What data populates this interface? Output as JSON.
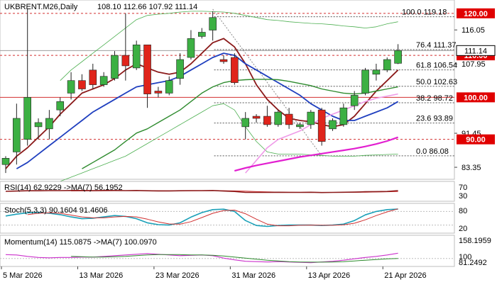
{
  "header": {
    "symbol": "UKBRENT.M26,Daily",
    "ohlc": "108.10 112.66 107.92 111.14"
  },
  "colors": {
    "bull": "#3cb043",
    "bear": "#e0241b",
    "ma_fast": "#8b1a1a",
    "ma_mid": "#1f3fbf",
    "ma_slow": "#2e8b2e",
    "ma_long": "#e21fd0",
    "ma_long_old": "#ef9ae8",
    "bands": "#4caf50",
    "level_line": "#d32f2f",
    "fib_line": "#555555",
    "price_tag": "#e00000",
    "osc_main": "#1aa0b8",
    "osc_signal": "#d03030",
    "rsi_main": "#8b1a1a",
    "momentum_main": "#cc33cc",
    "momentum_signal": "#2e8b2e"
  },
  "chart_data": {
    "type": "candlestick",
    "title": "UKBRENT.M26,Daily",
    "ylim": [
      81.0,
      122.5
    ],
    "grid": false,
    "price_ticks": [
      "116.05",
      "107.95",
      "91.45",
      "83.35"
    ],
    "x_labels": [
      "5 Mar 2026",
      "13 Mar 2026",
      "23 Mar 2026",
      "31 Mar 2026",
      "13 Apr 2026",
      "21 Apr 2026"
    ],
    "x_label_index": [
      0,
      7,
      14,
      21,
      28,
      35
    ],
    "candles": [
      {
        "o": 84.0,
        "h": 86.0,
        "l": 82.0,
        "c": 85.5
      },
      {
        "o": 87.0,
        "h": 98.5,
        "l": 84.0,
        "c": 95.0
      },
      {
        "o": 90.0,
        "h": 121.0,
        "l": 88.5,
        "c": 100.0
      },
      {
        "o": 93.0,
        "h": 95.0,
        "l": 90.0,
        "c": 94.0
      },
      {
        "o": 92.5,
        "h": 97.0,
        "l": 90.0,
        "c": 95.0
      },
      {
        "o": 97.0,
        "h": 100.0,
        "l": 95.5,
        "c": 99.0
      },
      {
        "o": 101.0,
        "h": 106.0,
        "l": 99.5,
        "c": 104.0
      },
      {
        "o": 104.0,
        "h": 105.5,
        "l": 101.5,
        "c": 102.0
      },
      {
        "o": 106.5,
        "h": 108.0,
        "l": 102.0,
        "c": 103.0
      },
      {
        "o": 103.0,
        "h": 106.0,
        "l": 102.5,
        "c": 105.0
      },
      {
        "o": 104.5,
        "h": 111.0,
        "l": 104.0,
        "c": 110.0
      },
      {
        "o": 110.0,
        "h": 120.0,
        "l": 104.0,
        "c": 107.5
      },
      {
        "o": 107.0,
        "h": 113.5,
        "l": 106.5,
        "c": 112.5
      },
      {
        "o": 112.5,
        "h": 112.5,
        "l": 97.5,
        "c": 100.8
      },
      {
        "o": 101.5,
        "h": 102.5,
        "l": 100.0,
        "c": 101.0
      },
      {
        "o": 101.0,
        "h": 105.0,
        "l": 100.5,
        "c": 104.0
      },
      {
        "o": 104.5,
        "h": 110.5,
        "l": 103.0,
        "c": 109.0
      },
      {
        "o": 109.5,
        "h": 116.0,
        "l": 109.0,
        "c": 114.0
      },
      {
        "o": 114.5,
        "h": 116.5,
        "l": 114.0,
        "c": 115.5
      },
      {
        "o": 116.0,
        "h": 120.5,
        "l": 113.5,
        "c": 119.0
      },
      {
        "o": 109.0,
        "h": 110.0,
        "l": 108.0,
        "c": 108.5
      },
      {
        "o": 109.5,
        "h": 110.5,
        "l": 103.0,
        "c": 103.5
      },
      {
        "o": 93.0,
        "h": 96.5,
        "l": 90.0,
        "c": 95.0
      },
      {
        "o": 95.5,
        "h": 96.0,
        "l": 94.0,
        "c": 95.0
      },
      {
        "o": 95.5,
        "h": 98.0,
        "l": 93.0,
        "c": 93.5
      },
      {
        "o": 93.5,
        "h": 97.0,
        "l": 93.0,
        "c": 96.5
      },
      {
        "o": 96.0,
        "h": 97.5,
        "l": 92.5,
        "c": 93.5
      },
      {
        "o": 93.0,
        "h": 94.0,
        "l": 92.5,
        "c": 93.5
      },
      {
        "o": 93.5,
        "h": 97.0,
        "l": 92.5,
        "c": 96.5
      },
      {
        "o": 97.0,
        "h": 97.5,
        "l": 88.5,
        "c": 89.5
      },
      {
        "o": 92.5,
        "h": 95.0,
        "l": 92.0,
        "c": 94.5
      },
      {
        "o": 93.5,
        "h": 98.5,
        "l": 93.0,
        "c": 97.5
      },
      {
        "o": 98.0,
        "h": 101.5,
        "l": 97.0,
        "c": 100.5
      },
      {
        "o": 101.0,
        "h": 107.0,
        "l": 100.5,
        "c": 106.5
      },
      {
        "o": 105.5,
        "h": 108.0,
        "l": 104.0,
        "c": 106.5
      },
      {
        "o": 106.5,
        "h": 109.5,
        "l": 106.0,
        "c": 109.0
      },
      {
        "o": 108.1,
        "h": 112.66,
        "l": 107.92,
        "c": 111.14
      }
    ],
    "moving_averages": [
      {
        "key": "ma_fast",
        "values": [
          83.0,
          86.0,
          88.0,
          90.5,
          93.0,
          96.0,
          98.5,
          101.0,
          102.0,
          103.0,
          104.5,
          106.5,
          108.0,
          107.0,
          106.0,
          105.5,
          106.0,
          108.0,
          110.5,
          113.0,
          114.0,
          112.0,
          108.0,
          103.0,
          99.5,
          97.0,
          95.0,
          94.5,
          94.2,
          93.5,
          93.0,
          93.5,
          95.5,
          98.5,
          101.5,
          104.0,
          106.5
        ]
      },
      {
        "key": "ma_mid",
        "values": [
          null,
          83.0,
          84.5,
          86.5,
          88.5,
          90.5,
          92.5,
          94.5,
          96.5,
          98.0,
          99.5,
          101.0,
          102.5,
          103.0,
          103.5,
          104.0,
          105.0,
          106.5,
          108.0,
          109.5,
          110.5,
          110.0,
          108.0,
          106.5,
          105.0,
          103.5,
          102.0,
          100.5,
          98.5,
          97.0,
          95.5,
          94.5,
          94.5,
          95.5,
          96.5,
          97.5,
          99.0
        ]
      },
      {
        "key": "ma_slow",
        "values": [
          null,
          null,
          null,
          null,
          null,
          null,
          null,
          83.0,
          84.5,
          86.0,
          87.5,
          89.5,
          91.5,
          92.5,
          94.0,
          95.5,
          97.0,
          99.0,
          101.0,
          102.5,
          103.5,
          104.0,
          104.2,
          104.3,
          104.3,
          104.2,
          103.8,
          103.3,
          102.8,
          102.0,
          101.5,
          101.0,
          100.8,
          101.0,
          101.5,
          102.0,
          102.5
        ]
      },
      {
        "key": "ma_long_old",
        "values": [
          null,
          null,
          null,
          null,
          null,
          null,
          null,
          null,
          null,
          null,
          null,
          null,
          null,
          null,
          null,
          null,
          null,
          null,
          null,
          null,
          null,
          null,
          82.0,
          85.0,
          88.0,
          90.0,
          91.0,
          92.0,
          93.5,
          95.0,
          96.0,
          97.0,
          98.0,
          99.0,
          99.8,
          100.3,
          100.8
        ]
      },
      {
        "key": "ma_long",
        "values": [
          null,
          null,
          null,
          null,
          null,
          null,
          null,
          null,
          null,
          null,
          null,
          null,
          null,
          null,
          null,
          null,
          null,
          null,
          null,
          null,
          null,
          82.5,
          83.2,
          83.8,
          84.3,
          84.8,
          85.3,
          85.8,
          86.2,
          86.6,
          87.0,
          87.4,
          87.8,
          88.3,
          88.9,
          89.6,
          90.5
        ]
      }
    ],
    "bands": {
      "upper": [
        null,
        null,
        null,
        null,
        null,
        104.0,
        106.5,
        108.5,
        110.5,
        112.5,
        114.5,
        116.5,
        118.5,
        119.5,
        119.8,
        120.0,
        120.3,
        120.5,
        120.5,
        120.4,
        120.3,
        120.0,
        119.5,
        119.0,
        118.5,
        118.3,
        118.0,
        117.8,
        117.6,
        117.5,
        117.3,
        117.0,
        116.8,
        116.5,
        116.8,
        117.5,
        118.0
      ],
      "lower": [
        null,
        null,
        null,
        null,
        null,
        80.0,
        81.0,
        82.0,
        83.0,
        84.0,
        85.0,
        86.0,
        87.5,
        89.0,
        90.5,
        92.0,
        93.5,
        95.0,
        96.5,
        98.0,
        98.5,
        97.0,
        93.0,
        89.5,
        87.0,
        86.5,
        86.5,
        86.5,
        86.3,
        86.2,
        86.0,
        86.0,
        86.0,
        86.2,
        86.3,
        86.4,
        86.5
      ]
    },
    "level_lines": [
      {
        "value": 120.0,
        "label": "120.00"
      },
      {
        "value": 110.0,
        "label": "110.00"
      },
      {
        "value": 100.0,
        "label": "100.00"
      },
      {
        "value": 90.0,
        "label": "90.00"
      }
    ],
    "current_price": {
      "value": 111.14,
      "label": "111.14"
    },
    "fib_levels": [
      {
        "value": 119.18,
        "label": "100.0 119.18"
      },
      {
        "value": 111.37,
        "label": "76.4 111.37"
      },
      {
        "value": 106.54,
        "label": "61.8 106.54"
      },
      {
        "value": 102.63,
        "label": "50.0 102.63"
      },
      {
        "value": 98.72,
        "label": "38.2 98.72"
      },
      {
        "value": 93.89,
        "label": "23.6 93.89"
      },
      {
        "value": 86.08,
        "label": "0.0 86.08"
      }
    ],
    "fib_diagonal_value": 121.0,
    "indicators": {
      "rsi": {
        "label": "RSI(14) 62.9229   ->MA(7) 56.1952",
        "ticks": [
          "70",
          "30"
        ],
        "ylim": [
          0,
          100
        ],
        "main": [
          58,
          60,
          62,
          62,
          63,
          63,
          64,
          64,
          63,
          64,
          64,
          63,
          64,
          62,
          61,
          61,
          62,
          63,
          63,
          64,
          60,
          57,
          50,
          50,
          50,
          51,
          50,
          50,
          51,
          49,
          50,
          51,
          52,
          55,
          56,
          57,
          62.9
        ],
        "signal": [
          null,
          null,
          null,
          null,
          null,
          null,
          61,
          61.5,
          62,
          62.5,
          63,
          63,
          63,
          63,
          62.5,
          62,
          62,
          62,
          62.5,
          63,
          62.5,
          61,
          59,
          56,
          54,
          52,
          51,
          50.5,
          50.3,
          50.2,
          50.1,
          50.2,
          50.5,
          51.5,
          53,
          54.5,
          56.2
        ]
      },
      "stoch": {
        "label": "Stoch(5,3,3) 90.1604 91.4606",
        "ticks": [
          "80",
          "20"
        ],
        "ylim": [
          0,
          100
        ],
        "main": [
          60,
          68,
          74,
          76,
          72,
          66,
          56,
          48,
          50,
          56,
          62,
          58,
          48,
          30,
          22,
          20,
          30,
          55,
          75,
          88,
          90,
          80,
          40,
          18,
          14,
          18,
          20,
          20,
          20,
          18,
          20,
          24,
          40,
          65,
          80,
          88,
          90.2
        ],
        "signal": [
          null,
          null,
          66,
          72,
          74,
          72,
          64,
          56,
          52,
          52,
          56,
          58,
          56,
          46,
          34,
          25,
          24,
          35,
          53,
          72,
          84,
          86,
          70,
          46,
          24,
          17,
          17,
          19,
          20,
          19,
          19,
          21,
          28,
          43,
          62,
          78,
          91.5
        ]
      },
      "momentum": {
        "label": "Momentum(14) 115.0875   ->MA(7) 100.0970",
        "ticks": [
          "158.1959",
          "100",
          "81.2492"
        ],
        "ylim": [
          81.2492,
          158.1959
        ],
        "main": [
          111,
          110,
          106,
          103,
          102,
          103,
          103,
          104,
          104,
          106,
          108,
          110,
          112,
          114,
          112,
          110,
          108,
          109,
          110,
          108,
          101,
          96,
          92,
          91,
          90,
          91,
          90,
          89,
          88,
          90,
          92,
          95,
          99,
          103,
          106,
          110,
          115.1
        ],
        "signal": [
          null,
          null,
          null,
          null,
          null,
          null,
          106,
          105,
          104,
          104,
          105,
          106,
          108,
          110,
          111,
          111,
          111,
          110,
          110,
          109,
          107,
          104,
          101,
          98,
          95,
          93,
          91,
          90,
          89.5,
          89.5,
          90,
          91,
          93,
          95,
          97,
          99,
          100.1
        ]
      }
    }
  }
}
